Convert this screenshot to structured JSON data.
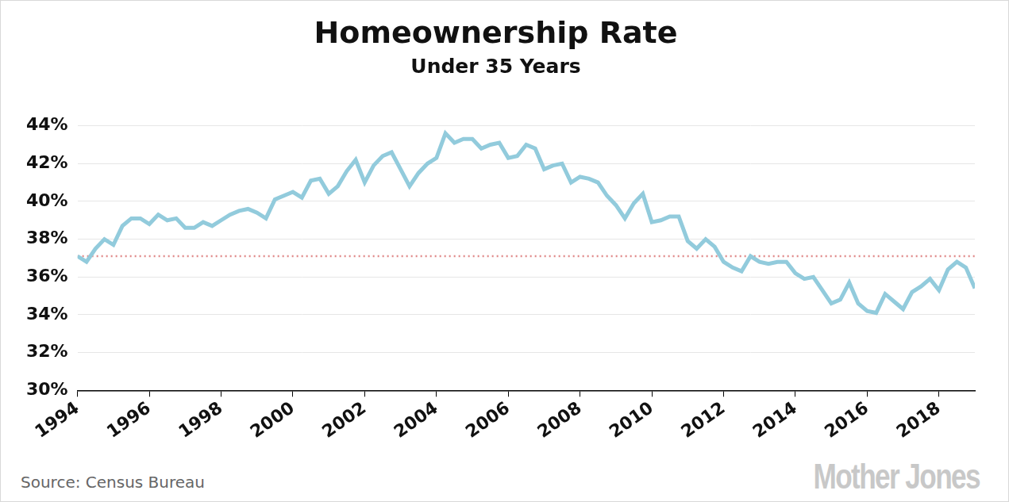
{
  "chart_data": {
    "type": "line",
    "title": "Homeownership Rate",
    "subtitle": "Under 35 Years",
    "categories": [
      "1994",
      null,
      null,
      null,
      null,
      null,
      null,
      null,
      "1996",
      null,
      null,
      null,
      null,
      null,
      null,
      null,
      "1998",
      null,
      null,
      null,
      null,
      null,
      null,
      null,
      "2000",
      null,
      null,
      null,
      null,
      null,
      null,
      null,
      "2002",
      null,
      null,
      null,
      null,
      null,
      null,
      null,
      "2004",
      null,
      null,
      null,
      null,
      null,
      null,
      null,
      "2006",
      null,
      null,
      null,
      null,
      null,
      null,
      null,
      "2008",
      null,
      null,
      null,
      null,
      null,
      null,
      null,
      "2010",
      null,
      null,
      null,
      null,
      null,
      null,
      null,
      "2012",
      null,
      null,
      null,
      null,
      null,
      null,
      null,
      "2014",
      null,
      null,
      null,
      null,
      null,
      null,
      null,
      "2016",
      null,
      null,
      null,
      null,
      null,
      null,
      null,
      "2018",
      null,
      null,
      null,
      null
    ],
    "values": [
      37.1,
      36.8,
      37.5,
      38.0,
      37.7,
      38.7,
      39.1,
      39.1,
      38.8,
      39.3,
      39.0,
      39.1,
      38.6,
      38.6,
      38.9,
      38.7,
      39.0,
      39.3,
      39.5,
      39.6,
      39.4,
      39.1,
      40.1,
      40.3,
      40.5,
      40.2,
      41.1,
      41.2,
      40.4,
      40.8,
      41.6,
      42.2,
      41.0,
      41.9,
      42.4,
      42.6,
      41.7,
      40.8,
      41.5,
      42.0,
      42.3,
      43.6,
      43.1,
      43.3,
      43.3,
      42.8,
      43.0,
      43.1,
      42.3,
      42.4,
      43.0,
      42.8,
      41.7,
      41.9,
      42.0,
      41.0,
      41.3,
      41.2,
      41.0,
      40.3,
      39.8,
      39.1,
      39.9,
      40.4,
      38.9,
      39.0,
      39.2,
      39.2,
      37.9,
      37.5,
      38.0,
      37.6,
      36.8,
      36.5,
      36.3,
      37.1,
      36.8,
      36.7,
      36.8,
      36.8,
      36.2,
      35.9,
      36.0,
      35.3,
      34.6,
      34.8,
      35.7,
      34.6,
      34.2,
      34.1,
      35.1,
      34.7,
      34.3,
      35.2,
      35.5,
      35.9,
      35.3,
      36.4,
      36.8,
      36.5,
      35.4
    ],
    "color": "#92cbdc",
    "ylim": [
      30,
      44
    ],
    "yticks": [
      {
        "value": 30,
        "label": "30%"
      },
      {
        "value": 32,
        "label": "32%"
      },
      {
        "value": 34,
        "label": "34%"
      },
      {
        "value": 36,
        "label": "36%"
      },
      {
        "value": 38,
        "label": "38%"
      },
      {
        "value": 40,
        "label": "40%"
      },
      {
        "value": 42,
        "label": "42%"
      },
      {
        "value": 44,
        "label": "44%"
      }
    ],
    "grid": true,
    "reference_line": {
      "value": 37.1,
      "color": "#e08a8a",
      "line_style": "dotted"
    },
    "source": "Source: Census Bureau",
    "credit": "Mother Jones"
  }
}
